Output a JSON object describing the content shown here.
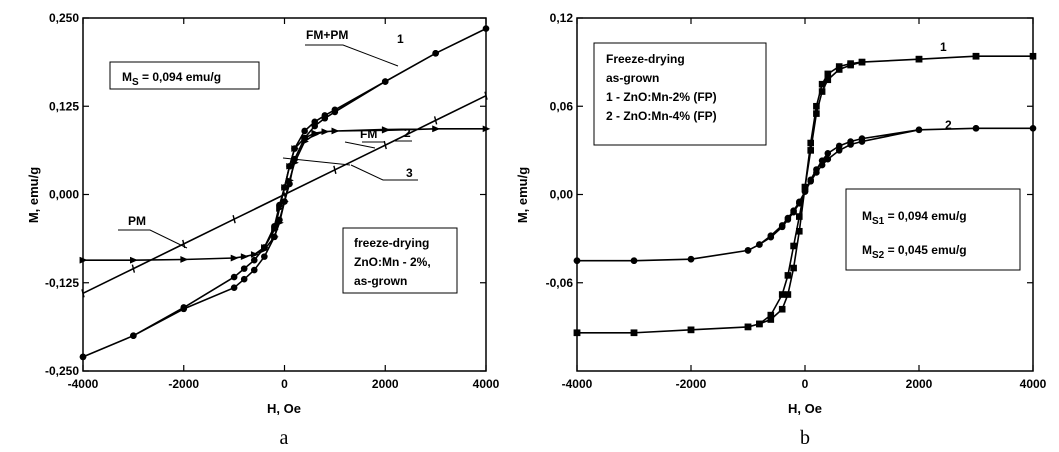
{
  "chart_data": [
    {
      "type": "line",
      "title": "",
      "xlabel": "H, Oe",
      "ylabel": "M, emu/g",
      "xlim": [
        -4000,
        4000
      ],
      "ylim": [
        -0.25,
        0.25
      ],
      "x_ticks": [
        "-4000",
        "-2000",
        "0",
        "2000",
        "4000"
      ],
      "y_ticks": [
        "-0,250",
        "-0,125",
        "0,000",
        "0,125",
        "0,250"
      ],
      "grid": false,
      "subfigure_label": "a",
      "annotations": {
        "ms_box": [
          "M",
          "S",
          " = 0,094 emu/g"
        ],
        "info_box": [
          "freeze-drying",
          "ZnO:Mn - 2%,",
          "as-grown"
        ],
        "labels": {
          "fm_pm": "FM+PM",
          "fm": "FM",
          "pm": "PM",
          "n1": "1",
          "n2": "2",
          "n3": "3"
        }
      },
      "series": [
        {
          "key": "1",
          "marker": "circle",
          "x": [
            -4000,
            -3000,
            -2000,
            -1000,
            -800,
            -600,
            -400,
            -200,
            -100,
            0,
            100,
            200,
            400,
            600,
            800,
            1000,
            2000,
            3000,
            4000,
            3000,
            2000,
            1000,
            800,
            600,
            400,
            200,
            100,
            0,
            -100,
            -200,
            -400,
            -600,
            -800,
            -1000,
            -2000,
            -3000,
            -4000
          ],
          "y": [
            -0.23,
            -0.2,
            -0.162,
            -0.132,
            -0.12,
            -0.107,
            -0.088,
            -0.06,
            -0.036,
            -0.01,
            0.015,
            0.05,
            0.08,
            0.097,
            0.108,
            0.117,
            0.16,
            0.2,
            0.235,
            0.2,
            0.16,
            0.12,
            0.112,
            0.103,
            0.09,
            0.065,
            0.04,
            0.01,
            -0.015,
            -0.045,
            -0.075,
            -0.093,
            -0.105,
            -0.117,
            -0.16,
            -0.2,
            -0.23
          ]
        },
        {
          "key": "2",
          "marker": "triangle-right",
          "x": [
            -4000,
            -3000,
            -2000,
            -1000,
            -800,
            -600,
            -400,
            -200,
            -100,
            0,
            100,
            200,
            400,
            600,
            800,
            1000,
            2000,
            3000,
            4000,
            3000,
            2000,
            1000,
            800,
            600,
            400,
            200,
            100,
            0,
            -100,
            -200,
            -400,
            -600,
            -800,
            -1000,
            -2000,
            -3000,
            -4000
          ],
          "y": [
            -0.093,
            -0.093,
            -0.092,
            -0.09,
            -0.088,
            -0.085,
            -0.078,
            -0.06,
            -0.04,
            -0.01,
            0.02,
            0.045,
            0.075,
            0.085,
            0.089,
            0.09,
            0.091,
            0.093,
            0.093,
            0.093,
            0.092,
            0.09,
            0.089,
            0.087,
            0.08,
            0.065,
            0.04,
            0.01,
            -0.02,
            -0.05,
            -0.075,
            -0.085,
            -0.088,
            -0.09,
            -0.092,
            -0.093,
            -0.093
          ]
        },
        {
          "key": "3",
          "marker": "dash",
          "x": [
            -4000,
            -3000,
            -2000,
            -1000,
            0,
            1000,
            2000,
            3000,
            4000
          ],
          "y": [
            -0.14,
            -0.105,
            -0.07,
            -0.035,
            0.0,
            0.035,
            0.07,
            0.105,
            0.14
          ]
        }
      ]
    },
    {
      "type": "line",
      "title": "",
      "xlabel": "H, Oe",
      "ylabel": "M, emu/g",
      "xlim": [
        -4000,
        4000
      ],
      "ylim": [
        -0.12,
        0.12
      ],
      "x_ticks": [
        "-4000",
        "-2000",
        "0",
        "2000",
        "4000"
      ],
      "y_ticks": [
        "-0,06",
        "0,00",
        "0,06",
        "0,12"
      ],
      "grid": false,
      "subfigure_label": "b",
      "annotations": {
        "legend_box": [
          "Freeze-drying",
          "as-grown",
          "1 - ZnO:Mn-2% (FP)",
          "2 - ZnO:Mn-4% (FP)"
        ],
        "ms_box": [
          [
            "M",
            "S1",
            " = 0,094 emu/g"
          ],
          [
            "M",
            "S2",
            " = 0,045 emu/g"
          ]
        ],
        "labels": {
          "n1": "1",
          "n2": "2"
        }
      },
      "series": [
        {
          "key": "1",
          "marker": "square",
          "x": [
            -4000,
            -3000,
            -2000,
            -1000,
            -800,
            -600,
            -400,
            -300,
            -200,
            -100,
            0,
            100,
            200,
            300,
            400,
            600,
            800,
            1000,
            2000,
            3000,
            4000,
            3000,
            2000,
            1000,
            800,
            600,
            400,
            300,
            200,
            100,
            0,
            -100,
            -200,
            -300,
            -400,
            -600,
            -800,
            -1000,
            -2000,
            -3000,
            -4000
          ],
          "y": [
            -0.094,
            -0.094,
            -0.092,
            -0.09,
            -0.088,
            -0.082,
            -0.068,
            -0.055,
            -0.035,
            -0.015,
            0.005,
            0.03,
            0.055,
            0.07,
            0.078,
            0.085,
            0.088,
            0.09,
            0.092,
            0.094,
            0.094,
            0.094,
            0.092,
            0.09,
            0.089,
            0.087,
            0.082,
            0.075,
            0.06,
            0.035,
            0.005,
            -0.025,
            -0.05,
            -0.068,
            -0.078,
            -0.085,
            -0.088,
            -0.09,
            -0.092,
            -0.094,
            -0.094
          ]
        },
        {
          "key": "2",
          "marker": "circle",
          "x": [
            -4000,
            -3000,
            -2000,
            -1000,
            -800,
            -600,
            -400,
            -300,
            -200,
            -100,
            0,
            100,
            200,
            300,
            400,
            600,
            800,
            1000,
            2000,
            3000,
            4000,
            3000,
            2000,
            1000,
            800,
            600,
            400,
            300,
            200,
            100,
            0,
            -100,
            -200,
            -300,
            -400,
            -600,
            -800,
            -1000,
            -2000,
            -3000,
            -4000
          ],
          "y": [
            -0.045,
            -0.045,
            -0.044,
            -0.038,
            -0.034,
            -0.028,
            -0.021,
            -0.016,
            -0.011,
            -0.005,
            0.002,
            0.009,
            0.015,
            0.02,
            0.024,
            0.03,
            0.034,
            0.036,
            0.044,
            0.045,
            0.045,
            0.045,
            0.044,
            0.038,
            0.036,
            0.033,
            0.028,
            0.023,
            0.017,
            0.01,
            0.002,
            -0.006,
            -0.012,
            -0.017,
            -0.022,
            -0.029,
            -0.034,
            -0.038,
            -0.044,
            -0.045,
            -0.045
          ]
        }
      ]
    }
  ]
}
